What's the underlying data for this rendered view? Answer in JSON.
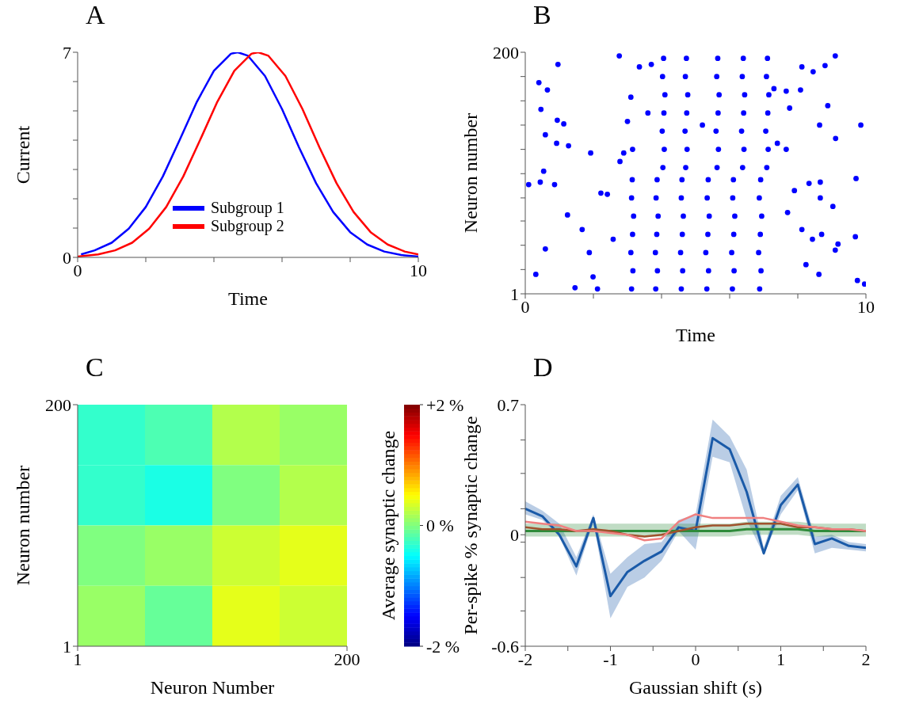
{
  "chart_data": [
    {
      "type": "line",
      "title": "A",
      "xlabel": "Time",
      "ylabel": "Current",
      "xlim": [
        0,
        10
      ],
      "xticks": [
        0,
        {
          "value": 2,
          "label": null
        },
        {
          "value": 4,
          "label": null
        },
        {
          "value": 6,
          "label": null
        },
        {
          "value": 8,
          "label": null
        },
        10
      ],
      "ylim": [
        0,
        7
      ],
      "yticks": [
        0,
        {
          "value": 1,
          "label": null
        },
        {
          "value": 2,
          "label": null
        },
        {
          "value": 3,
          "label": null
        },
        {
          "value": 4,
          "label": null
        },
        {
          "value": 5,
          "label": null
        },
        {
          "value": 6,
          "label": null
        },
        7
      ],
      "legend": "bottom",
      "series": [
        {
          "name": "Subgroup 1",
          "color": "#0000ff",
          "x": [
            0.1,
            0.5,
            1,
            1.5,
            2,
            2.5,
            3,
            3.5,
            4,
            4.5,
            4.7,
            5,
            5.5,
            6,
            6.5,
            7,
            7.5,
            8,
            8.5,
            9,
            9.5,
            10
          ],
          "values": [
            0.1,
            0.24,
            0.5,
            0.98,
            1.72,
            2.76,
            4.02,
            5.31,
            6.37,
            6.95,
            7,
            6.88,
            6.19,
            5.06,
            3.75,
            2.53,
            1.55,
            0.86,
            0.44,
            0.2,
            0.08,
            0.03
          ]
        },
        {
          "name": "Subgroup 2",
          "color": "#ff0000",
          "x": [
            0,
            0.6,
            1.1,
            1.6,
            2.1,
            2.6,
            3.1,
            3.6,
            4.1,
            4.6,
            5.1,
            5.3,
            5.6,
            6.1,
            6.6,
            7.1,
            7.6,
            8.1,
            8.6,
            9.1,
            9.6,
            10
          ],
          "values": [
            0.03,
            0.1,
            0.24,
            0.5,
            0.98,
            1.72,
            2.76,
            4.02,
            5.31,
            6.37,
            6.95,
            7,
            6.88,
            6.19,
            5.06,
            3.75,
            2.53,
            1.55,
            0.86,
            0.44,
            0.2,
            0.1
          ]
        }
      ]
    },
    {
      "type": "scatter",
      "title": "B",
      "xlabel": "Time",
      "ylabel": "Neuron number",
      "xlim": [
        0,
        10
      ],
      "xticks": [
        0,
        {
          "value": 2,
          "label": null
        },
        {
          "value": 4,
          "label": null
        },
        {
          "value": 6,
          "label": null
        },
        {
          "value": 8,
          "label": null
        },
        10
      ],
      "ylim": [
        1,
        200
      ],
      "yticks": [
        1,
        {
          "value": 21,
          "label": null
        },
        {
          "value": 41,
          "label": null
        },
        {
          "value": 61,
          "label": null
        },
        {
          "value": 80,
          "label": null
        },
        {
          "value": 100,
          "label": null
        },
        {
          "value": 120,
          "label": null
        },
        {
          "value": 140,
          "label": null
        },
        {
          "value": 160,
          "label": null
        },
        {
          "value": 180,
          "label": null
        },
        200
      ],
      "marker": "circle",
      "series": [
        {
          "color": "#0000ff",
          "x": [
            3.12,
            3.16,
            3.1,
            3.15,
            3.18,
            3.12,
            3.14,
            3.83,
            3.88,
            3.82,
            3.86,
            3.9,
            3.84,
            3.87,
            4.58,
            4.62,
            4.56,
            4.61,
            4.64,
            4.58,
            4.6,
            5.33,
            5.38,
            5.3,
            5.36,
            5.4,
            5.34,
            5.37,
            6.08,
            6.13,
            6.06,
            6.12,
            6.15,
            6.09,
            6.11,
            6.88,
            6.92,
            6.85,
            6.9,
            6.94,
            6.87,
            6.91,
            4.04,
            4.08,
            4.02,
            4.07,
            4.1,
            4.03,
            4.06,
            4.71,
            4.75,
            4.69,
            4.74,
            4.77,
            4.7,
            4.73,
            5.63,
            5.67,
            5.6,
            5.66,
            5.69,
            5.62,
            5.65,
            6.38,
            6.42,
            6.35,
            6.41,
            6.44,
            6.37,
            6.4,
            7.09,
            7.13,
            7.06,
            7.12,
            7.15,
            7.08,
            7.11,
            3.6,
            3.7,
            5.2,
            7.4,
            7.3,
            0.4,
            0.65,
            0.46,
            0.96,
            0.94,
            1.13,
            0.59,
            0.92,
            1.27,
            1.92,
            0.54,
            0.44,
            0.1,
            0.86,
            2.22,
            2.41,
            1.24,
            1.67,
            2.58,
            0.59,
            1.88,
            0.31,
            1.99,
            1.46,
            2.12,
            2.76,
            3.35,
            3.1,
            3,
            3.15,
            2.89,
            2.78,
            8.12,
            8.45,
            8.8,
            9.1,
            7.66,
            8.08,
            8.88,
            7.76,
            8.64,
            9.85,
            9.11,
            7.66,
            9.71,
            8.33,
            8.66,
            7.9,
            8.66,
            9.03,
            7.7,
            8.12,
            8.7,
            9.69,
            8.43,
            9.18,
            9.1,
            8.24,
            8.62,
            9.75,
            9.96
          ],
          "values": [
            5,
            20,
            35,
            50,
            65,
            80,
            95,
            5,
            20,
            35,
            50,
            65,
            80,
            95,
            5,
            20,
            35,
            50,
            65,
            80,
            95,
            5,
            20,
            35,
            50,
            65,
            80,
            95,
            5,
            20,
            35,
            50,
            65,
            80,
            95,
            5,
            20,
            35,
            50,
            65,
            80,
            95,
            105,
            120,
            135,
            150,
            165,
            180,
            195,
            105,
            120,
            135,
            150,
            165,
            180,
            195,
            105,
            120,
            135,
            150,
            165,
            180,
            195,
            105,
            120,
            135,
            150,
            165,
            180,
            195,
            105,
            120,
            135,
            150,
            165,
            180,
            195,
            150,
            190,
            140,
            125,
            170,
            175,
            169,
            153,
            190,
            144,
            141,
            132,
            125,
            123,
            117,
            102,
            93,
            91,
            91,
            84,
            83,
            66,
            54,
            46,
            38,
            35,
            17,
            15,
            6,
            5,
            197,
            188,
            163,
            143,
            120,
            117,
            110,
            188,
            184,
            189,
            197,
            168,
            169,
            156,
            154,
            140,
            140,
            129,
            120,
            96,
            92,
            93,
            86,
            80,
            73,
            68,
            54,
            50,
            48,
            46,
            42,
            37,
            25,
            17,
            12,
            9
          ]
        }
      ]
    },
    {
      "type": "heatmap",
      "title": "C",
      "xlabel": "Neuron Number",
      "ylabel": "Neuron number",
      "clabel": "Average synaptic change",
      "xlim": [
        1,
        200
      ],
      "xticks": [
        1,
        200
      ],
      "ylim": [
        1,
        200
      ],
      "yticks": [
        1,
        200
      ],
      "clim": [
        -2,
        2
      ],
      "cticks": [
        {
          "value": -2,
          "label": "-2 %"
        },
        {
          "value": 0,
          "label": "0 %"
        },
        {
          "value": 2,
          "label": "+2 %"
        }
      ],
      "cells": [
        [
          -0.3,
          -0.2,
          0.2,
          0.1
        ],
        [
          -0.3,
          -0.4,
          0,
          0.2
        ],
        [
          0,
          0.1,
          0.3,
          0.4
        ],
        [
          0.1,
          -0.1,
          0.4,
          0.3
        ]
      ]
    },
    {
      "type": "line",
      "title": "D",
      "xlabel": "Gaussian shift (s)",
      "ylabel": "Per-spike % synaptic change",
      "xlim": [
        -2,
        2
      ],
      "xticks": [
        -2,
        {
          "value": -1.5,
          "label": null
        },
        -1,
        {
          "value": -0.5,
          "label": null
        },
        0,
        {
          "value": 0.5,
          "label": null
        },
        1,
        {
          "value": 1.5,
          "label": null
        },
        2
      ],
      "ylim": [
        -0.6,
        0.7
      ],
      "yticks": [
        -0.6,
        {
          "value": -0.41,
          "label": null
        },
        {
          "value": -0.23,
          "label": null
        },
        {
          "value": -0.04,
          "label": null
        },
        0,
        {
          "value": 0.14,
          "label": null
        },
        {
          "value": 0.33,
          "label": null
        },
        {
          "value": 0.51,
          "label": null
        },
        0.7
      ],
      "x": [
        -2,
        -1.8,
        -1.6,
        -1.4,
        -1.2,
        -1,
        -0.8,
        -0.6,
        -0.4,
        -0.2,
        0,
        0.2,
        0.4,
        0.6,
        0.8,
        1,
        1.2,
        1.4,
        1.6,
        1.8,
        2
      ],
      "series": [
        {
          "color": "#1a5aa8",
          "values": [
            0.14,
            0.1,
            0,
            -0.17,
            0.09,
            -0.33,
            -0.2,
            -0.14,
            -0.09,
            0.04,
            0.02,
            0.52,
            0.46,
            0.23,
            -0.1,
            0.16,
            0.27,
            -0.05,
            -0.02,
            -0.06,
            -0.07
          ],
          "lower": [
            0.11,
            0.08,
            -0.01,
            -0.22,
            0.07,
            -0.45,
            -0.28,
            -0.23,
            -0.14,
            0.02,
            -0.08,
            0.42,
            0.39,
            0.08,
            -0.11,
            0.11,
            0.24,
            -0.1,
            -0.07,
            -0.08,
            -0.09
          ],
          "upper": [
            0.18,
            0.13,
            0.06,
            -0.12,
            0.11,
            -0.21,
            -0.12,
            -0.05,
            -0.04,
            0.08,
            0.11,
            0.62,
            0.53,
            0.35,
            -0.07,
            0.21,
            0.31,
            -0.01,
            0,
            -0.04,
            -0.05
          ]
        },
        {
          "color": "#2e8b3a",
          "values": [
            0.02,
            0.02,
            0.02,
            0.02,
            0.02,
            0.02,
            0.02,
            0.02,
            0.02,
            0.02,
            0.02,
            0.02,
            0.02,
            0.03,
            0.03,
            0.03,
            0.03,
            0.02,
            0.02,
            0.02,
            0.02
          ],
          "lower": [
            -0.01,
            -0.01,
            -0.01,
            -0.01,
            -0.01,
            -0.01,
            -0.01,
            -0.01,
            -0.01,
            -0.01,
            -0.01,
            -0.01,
            -0.01,
            0,
            0,
            0,
            0,
            -0.01,
            -0.01,
            -0.01,
            -0.01
          ],
          "upper": [
            0.06,
            0.06,
            0.06,
            0.06,
            0.06,
            0.06,
            0.06,
            0.06,
            0.06,
            0.06,
            0.06,
            0.06,
            0.06,
            0.07,
            0.07,
            0.07,
            0.07,
            0.06,
            0.06,
            0.06,
            0.06
          ]
        },
        {
          "color": "#a0522d",
          "values": [
            0.04,
            0.03,
            0.03,
            0.02,
            0.03,
            0.02,
            0,
            -0.01,
            0,
            0.02,
            0.04,
            0.05,
            0.05,
            0.06,
            0.06,
            0.06,
            0.04,
            0.04,
            0.03,
            0.03,
            0.02
          ]
        },
        {
          "color": "#f08080",
          "values": [
            0.07,
            0.06,
            0.05,
            0.02,
            0.02,
            0.01,
            0,
            -0.03,
            -0.02,
            0.07,
            0.11,
            0.09,
            0.09,
            0.09,
            0.09,
            0.07,
            0.05,
            0.04,
            0.03,
            0.03,
            0.02
          ]
        }
      ]
    }
  ]
}
